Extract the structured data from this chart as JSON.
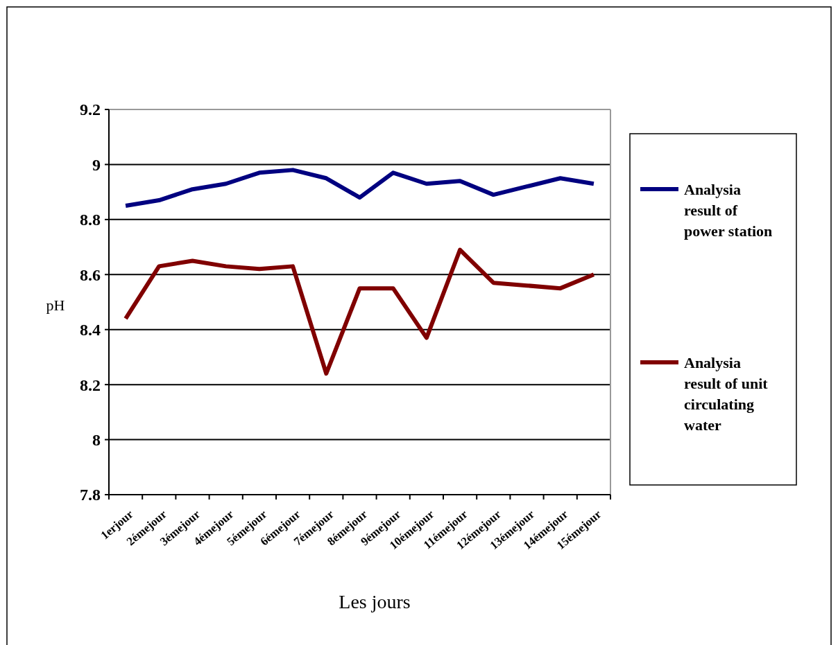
{
  "chart_data": {
    "type": "line",
    "xlabel": "Les jours",
    "ylabel": "pH",
    "categories": [
      "1erjour",
      "2émejour",
      "3émejour",
      "4émejour",
      "5émejour",
      "6émejour",
      "7émejour",
      "8émejour",
      "9émejour",
      "10émejour",
      "11émejour",
      "12émejour",
      "13émejour",
      "14émejour",
      "15émejour"
    ],
    "series": [
      {
        "name": "Analysia result of power station",
        "color": "#000080",
        "values": [
          8.85,
          8.87,
          8.91,
          8.93,
          8.97,
          8.98,
          8.95,
          8.88,
          8.97,
          8.93,
          8.94,
          8.89,
          8.92,
          8.95,
          8.93
        ]
      },
      {
        "name": "Analysia result of unit circulating water",
        "color": "#800000",
        "values": [
          8.44,
          8.63,
          8.65,
          8.63,
          8.62,
          8.63,
          8.24,
          8.55,
          8.55,
          8.37,
          8.69,
          8.57,
          8.56,
          8.55,
          8.6
        ]
      }
    ],
    "ylim": [
      7.8,
      9.2
    ],
    "yticks": [
      7.8,
      8,
      8.2,
      8.4,
      8.6,
      8.8,
      9,
      9.2
    ],
    "grid": "y",
    "legend": "right",
    "marker": "none",
    "line_style": "solid"
  }
}
